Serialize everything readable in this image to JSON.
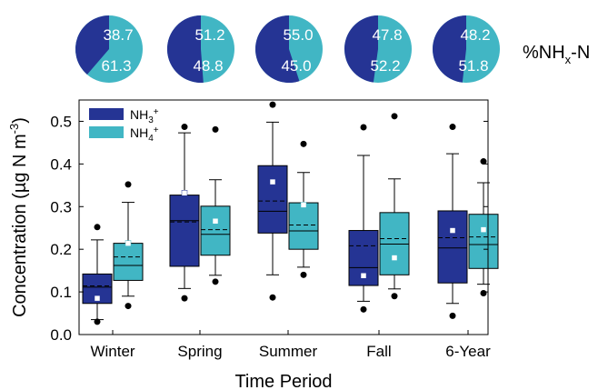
{
  "colors": {
    "nh3": "#253494",
    "nh4": "#41b6c4",
    "outline": "#000000",
    "mean_marker": "#ffffff",
    "pie_label": "#ffffff"
  },
  "pie_header": {
    "label_main": "%NH",
    "label_sub": "x",
    "label_tail": "-N",
    "pies": [
      {
        "season": "Winter",
        "nh3_pct": 38.7,
        "nh4_pct": 61.3,
        "nh3_text": "38.7",
        "nh4_text": "61.3"
      },
      {
        "season": "Spring",
        "nh3_pct": 51.2,
        "nh4_pct": 48.8,
        "nh3_text": "51.2",
        "nh4_text": "48.8"
      },
      {
        "season": "Summer",
        "nh3_pct": 55.0,
        "nh4_pct": 45.0,
        "nh3_text": "55.0",
        "nh4_text": "45.0"
      },
      {
        "season": "Fall",
        "nh3_pct": 47.8,
        "nh4_pct": 52.2,
        "nh3_text": "47.8",
        "nh4_text": "52.2"
      },
      {
        "season": "6-Year",
        "nh3_pct": 48.2,
        "nh4_pct": 51.8,
        "nh3_text": "48.2",
        "nh4_text": "51.8"
      }
    ]
  },
  "legend": [
    {
      "key": "nh3",
      "main": "NH",
      "sub": "3",
      "sup": "+"
    },
    {
      "key": "nh4",
      "main": "NH",
      "sub": "4",
      "sup": "+"
    }
  ],
  "chart_data": {
    "type": "box",
    "xlabel": "Time Period",
    "ylabel_main": "Concentration (µg N m",
    "ylabel_sup": "-3",
    "ylabel_tail": ")",
    "ylim": [
      0.0,
      0.55
    ],
    "yticks": [
      0.0,
      0.1,
      0.2,
      0.3,
      0.4,
      0.5
    ],
    "ytick_labels": [
      "0.0",
      "0.1",
      "0.2",
      "0.3",
      "0.4",
      "0.5"
    ],
    "categories": [
      "Winter",
      "Spring",
      "Summer",
      "Fall",
      "6-Year"
    ],
    "grid": false,
    "legend_position": "top-left",
    "box_elements": "box = quartiles, solid line = median, dashed line = mean, whiskers = 10th/90th percentile, dots = 5th/95th percentile, square = mean marker",
    "series": [
      {
        "key": "nh3",
        "name": "NH3",
        "boxes": [
          {
            "p5": 0.03,
            "p10": 0.035,
            "q1": 0.073,
            "median": 0.111,
            "mean": 0.114,
            "q3": 0.142,
            "p90": 0.222,
            "p95": 0.252,
            "marker": 0.085
          },
          {
            "p5": 0.085,
            "p10": 0.108,
            "q1": 0.16,
            "median": 0.267,
            "mean": 0.264,
            "q3": 0.327,
            "p90": 0.473,
            "p95": 0.487,
            "marker": 0.332
          },
          {
            "p5": 0.087,
            "p10": 0.14,
            "q1": 0.238,
            "median": 0.289,
            "mean": 0.313,
            "q3": 0.396,
            "p90": 0.498,
            "p95": 0.539,
            "marker": 0.358
          },
          {
            "p5": 0.059,
            "p10": 0.078,
            "q1": 0.115,
            "median": 0.157,
            "mean": 0.208,
            "q3": 0.244,
            "p90": 0.42,
            "p95": 0.486,
            "marker": 0.138
          },
          {
            "p5": 0.044,
            "p10": 0.073,
            "q1": 0.121,
            "median": 0.203,
            "mean": 0.227,
            "q3": 0.29,
            "p90": 0.424,
            "p95": 0.487,
            "marker": 0.244
          }
        ]
      },
      {
        "key": "nh4",
        "name": "NH4+",
        "boxes": [
          {
            "p5": 0.067,
            "p10": 0.09,
            "q1": 0.127,
            "median": 0.162,
            "mean": 0.182,
            "q3": 0.214,
            "p90": 0.31,
            "p95": 0.352,
            "marker": 0.214
          },
          {
            "p5": 0.124,
            "p10": 0.139,
            "q1": 0.186,
            "median": 0.235,
            "mean": 0.246,
            "q3": 0.301,
            "p90": 0.363,
            "p95": 0.481,
            "marker": 0.266
          },
          {
            "p5": 0.14,
            "p10": 0.158,
            "q1": 0.2,
            "median": 0.243,
            "mean": 0.257,
            "q3": 0.309,
            "p90": 0.38,
            "p95": 0.447,
            "marker": 0.304
          },
          {
            "p5": 0.09,
            "p10": 0.107,
            "q1": 0.14,
            "median": 0.212,
            "mean": 0.225,
            "q3": 0.286,
            "p90": 0.365,
            "p95": 0.512,
            "marker": 0.18
          },
          {
            "p5": 0.097,
            "p10": 0.118,
            "q1": 0.155,
            "median": 0.211,
            "mean": 0.229,
            "q3": 0.282,
            "p90": 0.356,
            "p95": 0.406,
            "marker": 0.246
          }
        ]
      }
    ]
  }
}
